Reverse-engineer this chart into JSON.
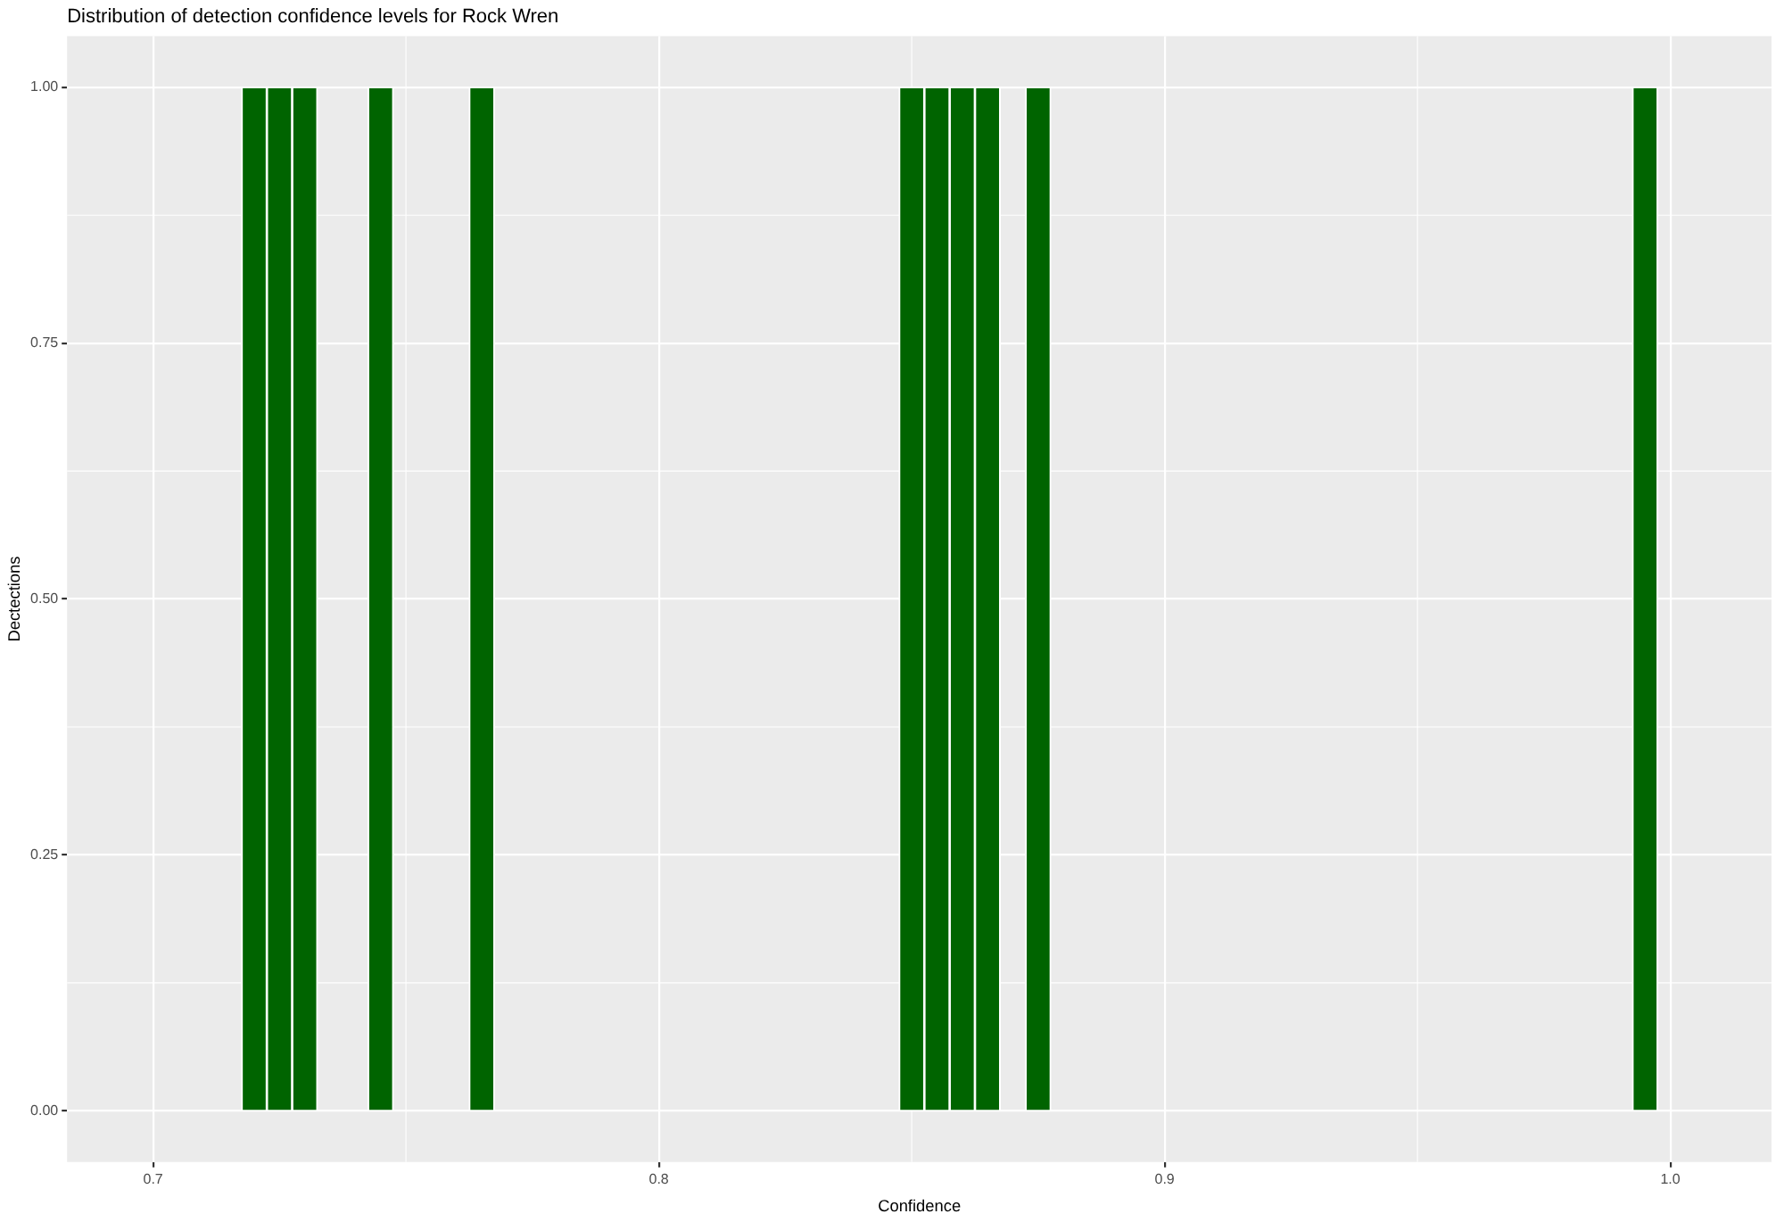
{
  "chart_data": {
    "type": "histogram",
    "title": "Distribution of detection confidence levels for Rock Wren",
    "xlabel": "Confidence",
    "ylabel": "Dectections",
    "bins": [
      0.7175,
      0.7225,
      0.7275,
      0.7325,
      0.7375,
      0.7425,
      0.7475,
      0.7525,
      0.7575,
      0.7625,
      0.7675,
      0.7725,
      0.7775,
      0.7825,
      0.7875,
      0.7925,
      0.7975,
      0.8025,
      0.8075,
      0.8125,
      0.8175,
      0.8225,
      0.8275,
      0.8325,
      0.8375,
      0.8425,
      0.8475,
      0.8525,
      0.8575,
      0.8625,
      0.8675,
      0.8725,
      0.8775,
      0.8825,
      0.8875,
      0.8925,
      0.8975,
      0.9025,
      0.9075,
      0.9125,
      0.9175,
      0.9225,
      0.9275,
      0.9325,
      0.9375,
      0.9425,
      0.9475,
      0.9525,
      0.9575,
      0.9625,
      0.9675,
      0.9725,
      0.9775,
      0.9825,
      0.9875,
      0.9925,
      0.9975
    ],
    "values": [
      1,
      1,
      1,
      0,
      0,
      1,
      0,
      0,
      0,
      1,
      0,
      0,
      0,
      0,
      0,
      0,
      0,
      0,
      0,
      0,
      0,
      0,
      0,
      0,
      0,
      0,
      1,
      1,
      1,
      1,
      0,
      1,
      0,
      0,
      0,
      0,
      0,
      0,
      0,
      0,
      0,
      0,
      0,
      0,
      0,
      0,
      0,
      0,
      0,
      0,
      0,
      0,
      0,
      0,
      0,
      1
    ],
    "color": "#006400",
    "xlim": [
      0.683,
      1.02
    ],
    "xticks": [
      0.7,
      0.8,
      0.9,
      {
        "value": 1,
        "label": "1.0"
      }
    ],
    "ylim": [
      -0.05,
      1.05
    ],
    "yticks": [
      {
        "value": 0,
        "label": "0.00"
      },
      {
        "value": 0.25,
        "label": "0.25"
      },
      {
        "value": 0.5,
        "label": "0.50"
      },
      {
        "value": 0.75,
        "label": "0.75"
      },
      {
        "value": 1,
        "label": "1.00"
      }
    ],
    "grid": true,
    "legend": false
  }
}
